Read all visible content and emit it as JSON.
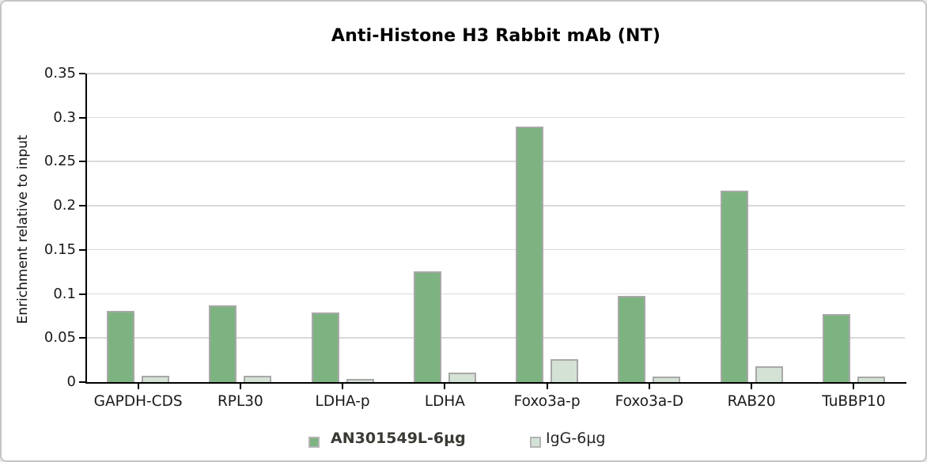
{
  "chart_data": {
    "type": "bar",
    "title": "Anti-Histone H3 Rabbit mAb (NT)",
    "xlabel": "",
    "ylabel": "Enrichment relative to input",
    "categories": [
      "GAPDH-CDS",
      "RPL30",
      "LDHA-p",
      "LDHA",
      "Foxo3a-p",
      "Foxo3a-D",
      "RAB20",
      "TuBBP10"
    ],
    "series": [
      {
        "name": "AN301549L-6µg",
        "color": "#7db380",
        "values": [
          0.081,
          0.087,
          0.079,
          0.126,
          0.29,
          0.098,
          0.217,
          0.077
        ]
      },
      {
        "name": "IgG-6µg",
        "color": "#d4e2d5",
        "values": [
          0.007,
          0.007,
          0.004,
          0.011,
          0.026,
          0.006,
          0.018,
          0.006
        ]
      }
    ],
    "ylim": [
      0,
      0.35
    ],
    "ytick_step": 0.05,
    "ytick_labels": [
      "0",
      "0.05",
      "0.1",
      "0.15",
      "0.2",
      "0.25",
      "0.3",
      "0.35"
    ],
    "grid": true,
    "legend_position": "bottom",
    "colors": {
      "axis": "#000000",
      "gridline": "#d9d9d9",
      "bar_border": "#a8a8a8",
      "frame_border": "#c6c6c6",
      "background": "#ffffff"
    }
  }
}
